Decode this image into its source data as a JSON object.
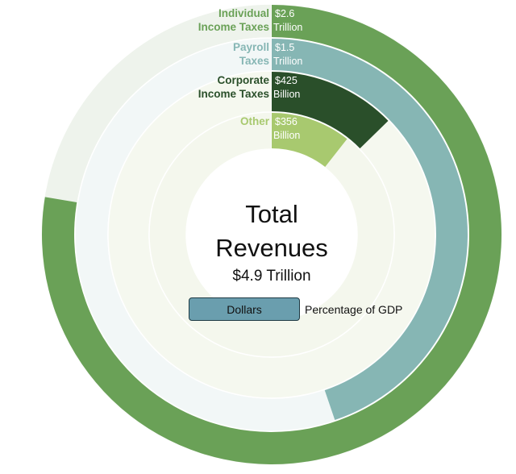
{
  "chart_data": {
    "type": "radial_bar",
    "center": {
      "title_line1": "Total",
      "title_line2": "Revenues",
      "total": "$4.9 Trillion"
    },
    "series": [
      {
        "category_line1": "Individual",
        "category_line2": "Income Taxes",
        "value_line1": "$2.6",
        "value_line2": "Trillion",
        "value": 2.6,
        "unit": "trillion",
        "color": "#6aa157",
        "track_color": "#eef3ec",
        "label_color": "#6aa157"
      },
      {
        "category_line1": "Payroll",
        "category_line2": "Taxes",
        "value_line1": "$1.5",
        "value_line2": "Trillion",
        "value": 1.5,
        "unit": "trillion",
        "color": "#86b6b4",
        "track_color": "#f2f7f7",
        "label_color": "#86b6b4"
      },
      {
        "category_line1": "Corporate",
        "category_line2": "Income Taxes",
        "value_line1": "$425",
        "value_line2": "Billion",
        "value": 0.425,
        "unit": "trillion",
        "color": "#2a4f2a",
        "track_color": "#f5f8ef",
        "label_color": "#2a4f2a"
      },
      {
        "category_line1": "Other",
        "category_line2": "",
        "value_line1": "$356",
        "value_line2": "Billion",
        "value": 0.356,
        "unit": "trillion",
        "color": "#a8c96f",
        "track_color": "#f4f7ed",
        "label_color": "#a8c96f"
      }
    ],
    "scale_max": 3.35
  },
  "toggle": {
    "active_label": "Dollars",
    "inactive_label": "Percentage of GDP"
  }
}
